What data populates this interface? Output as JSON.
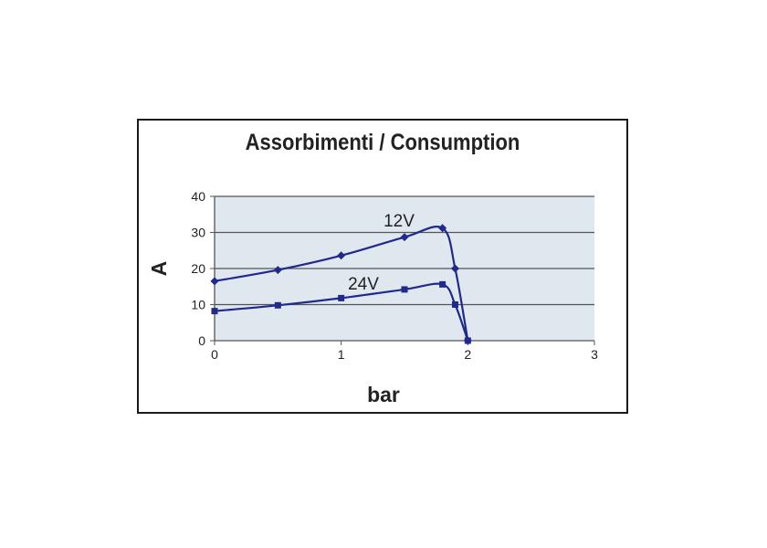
{
  "chart_data": {
    "type": "line",
    "title": "Assorbimenti / Consumption",
    "xlabel": "bar",
    "ylabel": "A",
    "xlim": [
      0,
      3
    ],
    "ylim": [
      0,
      40
    ],
    "xticks": [
      "0",
      "1",
      "2",
      "3"
    ],
    "yticks": [
      "0",
      "10",
      "20",
      "30",
      "40"
    ],
    "grid": true,
    "series": [
      {
        "name": "12V",
        "marker": "diamond",
        "x": [
          0,
          0.5,
          1,
          1.5,
          1.8,
          1.9,
          2
        ],
        "y": [
          16.5,
          19.6,
          23.6,
          28.7,
          31.2,
          20,
          0
        ]
      },
      {
        "name": "24V",
        "marker": "square",
        "x": [
          0,
          0.5,
          1,
          1.5,
          1.8,
          1.9,
          2
        ],
        "y": [
          8.2,
          9.8,
          11.8,
          14.2,
          15.6,
          10,
          0
        ]
      }
    ],
    "colors": {
      "line": "#1f2a8c",
      "plot_bg": "#dfe7ef",
      "grid": "#555555"
    }
  }
}
